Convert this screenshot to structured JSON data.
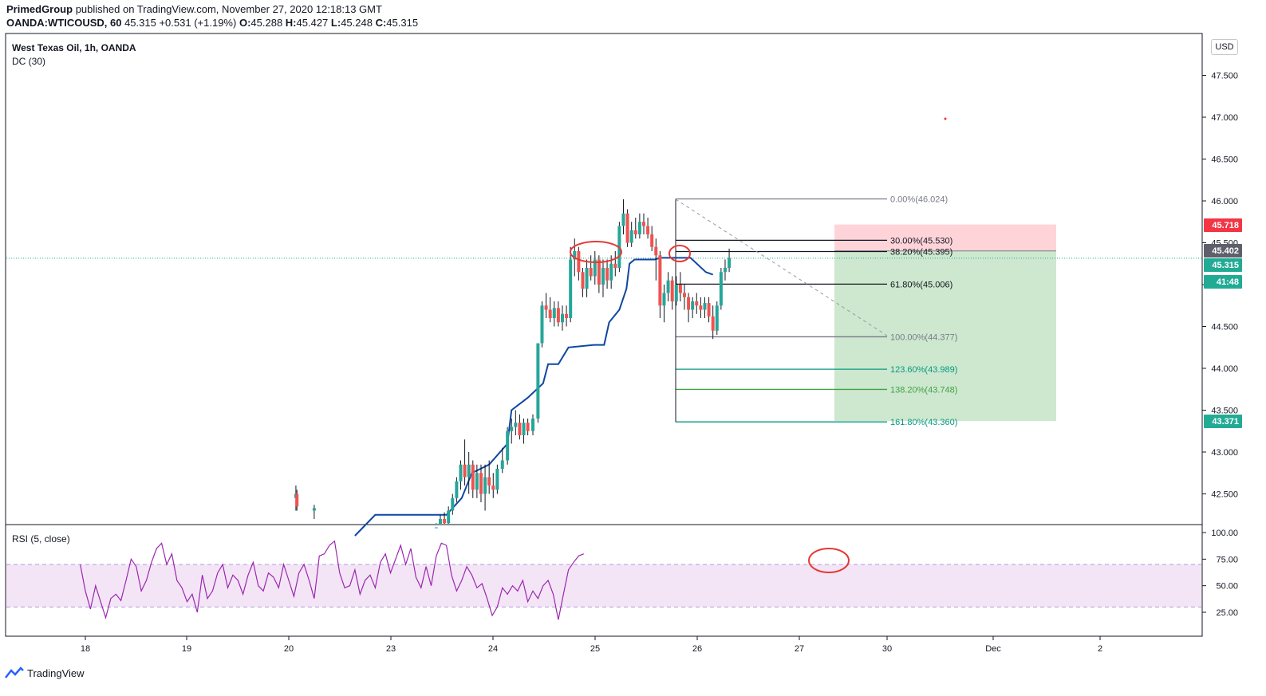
{
  "header": {
    "publisher": "PrimedGroup",
    "published_text": "published on TradingView.com, November 27, 2020 12:18:13 GMT",
    "symbol": "OANDA:WTICOUSD, 60",
    "last": "45.315",
    "change": "+0.531 (+1.19%)",
    "o_label": "O:",
    "o_val": "45.288",
    "h_label": "H:",
    "h_val": "45.427",
    "l_label": "L:",
    "l_val": "45.248",
    "c_label": "C:",
    "c_val": "45.315"
  },
  "legend": {
    "title": "West Texas Oil, 1h, OANDA",
    "indicator": "DC (30)",
    "rsi": "RSI (5, close)",
    "currency": "USD"
  },
  "footer": {
    "brand": "TradingView"
  },
  "colors": {
    "up": "#26a69a",
    "down": "#ef5350",
    "donchian": "#0d47a1",
    "rsi": "#9c27b0",
    "rsi_band": "#f3e5f5",
    "target_zone": "#c8e6c9",
    "stop_zone": "#ffcdd2",
    "price_badge_red": "#f23645",
    "price_badge_green": "#22ab94",
    "price_badge_gray": "#5d606b"
  },
  "chart_data": {
    "type": "candlestick",
    "price_axis": {
      "ticks": [
        42.5,
        43.0,
        43.5,
        44.0,
        44.5,
        45.0,
        45.5,
        46.0,
        46.5,
        47.0,
        47.5
      ],
      "labels": [
        "42.500",
        "43.000",
        "43.500",
        "44.000",
        "44.500",
        "45.000",
        "45.500",
        "46.000",
        "46.500",
        "47.000",
        "47.500"
      ]
    },
    "time_axis": {
      "labels": [
        "18",
        "19",
        "20",
        "23",
        "24",
        "25",
        "26",
        "27",
        "30",
        "Dec",
        "2"
      ]
    },
    "rsi_axis": {
      "ticks": [
        25,
        50,
        75,
        100
      ],
      "labels": [
        "25.00",
        "50.00",
        "75.00",
        "100.00"
      ],
      "band": [
        30,
        70
      ]
    },
    "price_badges": [
      {
        "text": "45.718",
        "value": 45.718,
        "kind": "red"
      },
      {
        "text": "45.402",
        "value": 45.402,
        "kind": "gray"
      },
      {
        "text": "45.315",
        "value": 45.315,
        "kind": "green"
      },
      {
        "text": "41:48",
        "value": 45.14,
        "kind": "green"
      },
      {
        "text": "43.371",
        "value": 43.371,
        "kind": "green"
      }
    ],
    "fib_levels": [
      {
        "label": "0.00%(46.024)",
        "value": 46.024,
        "color": "#787b86"
      },
      {
        "label": "30.00%(45.530)",
        "value": 45.53,
        "color": "#131722"
      },
      {
        "label": "38.20%(45.395)",
        "value": 45.395,
        "color": "#131722"
      },
      {
        "label": "61.80%(45.006)",
        "value": 45.006,
        "color": "#131722"
      },
      {
        "label": "100.00%(44.377)",
        "value": 44.377,
        "color": "#787b86"
      },
      {
        "label": "123.60%(43.989)",
        "value": 43.989,
        "color": "#089981"
      },
      {
        "label": "138.20%(43.748)",
        "value": 43.748,
        "color": "#43a047"
      },
      {
        "label": "161.80%(43.360)",
        "value": 43.36,
        "color": "#089981"
      }
    ],
    "position": {
      "entry": 45.402,
      "stop": 45.718,
      "target": 43.371
    },
    "current_price": 45.315,
    "donchian_mid": [
      [
        0.1,
        42.0
      ],
      [
        0.3,
        42.25
      ],
      [
        1.0,
        42.25
      ],
      [
        1.15,
        42.45
      ],
      [
        1.25,
        42.75
      ],
      [
        1.42,
        42.85
      ],
      [
        1.6,
        43.1
      ],
      [
        1.64,
        43.5
      ],
      [
        1.8,
        43.65
      ],
      [
        1.95,
        43.82
      ],
      [
        2.0,
        44.05
      ],
      [
        2.1,
        44.05
      ],
      [
        2.2,
        44.25
      ],
      [
        2.45,
        44.28
      ],
      [
        2.55,
        44.28
      ],
      [
        2.6,
        44.55
      ],
      [
        2.7,
        44.7
      ],
      [
        2.77,
        44.95
      ],
      [
        2.8,
        45.25
      ],
      [
        2.85,
        45.3
      ],
      [
        3.05,
        45.3
      ],
      [
        3.1,
        45.32
      ],
      [
        3.4,
        45.32
      ],
      [
        3.55,
        45.15
      ],
      [
        3.62,
        45.12
      ]
    ],
    "candles": [
      [
        -0.48,
        42.45,
        42.6,
        42.3,
        42.5
      ],
      [
        -0.47,
        42.5,
        42.55,
        42.3,
        42.35
      ],
      [
        -0.3,
        42.3,
        42.37,
        42.2,
        42.33
      ],
      [
        0.9,
        42.05,
        42.15,
        41.95,
        42.1
      ],
      [
        0.94,
        42.1,
        42.25,
        42.05,
        42.2
      ],
      [
        0.98,
        42.2,
        42.28,
        42.1,
        42.15
      ],
      [
        1.02,
        42.15,
        42.35,
        42.1,
        42.3
      ],
      [
        1.06,
        42.3,
        42.5,
        42.25,
        42.45
      ],
      [
        1.1,
        42.45,
        42.7,
        42.4,
        42.65
      ],
      [
        1.14,
        42.65,
        42.9,
        42.55,
        42.85
      ],
      [
        1.18,
        42.85,
        43.15,
        42.6,
        42.7
      ],
      [
        1.22,
        42.7,
        43.0,
        42.5,
        42.85
      ],
      [
        1.26,
        42.85,
        42.9,
        42.45,
        42.55
      ],
      [
        1.3,
        42.55,
        42.85,
        42.45,
        42.75
      ],
      [
        1.34,
        42.75,
        42.85,
        42.4,
        42.5
      ],
      [
        1.38,
        42.5,
        42.85,
        42.3,
        42.7
      ],
      [
        1.42,
        42.7,
        42.9,
        42.5,
        42.6
      ],
      [
        1.46,
        42.6,
        42.75,
        42.45,
        42.55
      ],
      [
        1.5,
        42.55,
        42.85,
        42.5,
        42.8
      ],
      [
        1.55,
        42.8,
        43.05,
        42.75,
        42.9
      ],
      [
        1.6,
        42.9,
        43.3,
        42.85,
        43.25
      ],
      [
        1.64,
        43.25,
        43.4,
        43.1,
        43.3
      ],
      [
        1.68,
        43.3,
        43.5,
        43.2,
        43.35
      ],
      [
        1.72,
        43.35,
        43.45,
        43.15,
        43.2
      ],
      [
        1.76,
        43.2,
        43.4,
        43.1,
        43.35
      ],
      [
        1.8,
        43.35,
        43.4,
        43.2,
        43.25
      ],
      [
        1.85,
        43.25,
        43.45,
        43.2,
        43.4
      ],
      [
        1.9,
        43.4,
        44.3,
        43.35,
        44.3
      ],
      [
        1.94,
        44.3,
        44.8,
        44.25,
        44.75
      ],
      [
        1.98,
        44.75,
        44.9,
        44.6,
        44.7
      ],
      [
        2.02,
        44.7,
        44.85,
        44.55,
        44.6
      ],
      [
        2.06,
        44.6,
        44.8,
        44.5,
        44.72
      ],
      [
        2.1,
        44.72,
        44.8,
        44.5,
        44.55
      ],
      [
        2.14,
        44.55,
        44.75,
        44.45,
        44.65
      ],
      [
        2.18,
        44.65,
        44.75,
        44.5,
        44.6
      ],
      [
        2.22,
        44.6,
        45.45,
        44.55,
        45.3
      ],
      [
        2.26,
        45.3,
        45.55,
        45.1,
        45.4
      ],
      [
        2.3,
        45.4,
        45.45,
        45.05,
        45.15
      ],
      [
        2.34,
        45.15,
        45.2,
        44.85,
        44.95
      ],
      [
        2.38,
        44.95,
        45.3,
        44.85,
        45.2
      ],
      [
        2.42,
        45.2,
        45.35,
        45.05,
        45.1
      ],
      [
        2.46,
        45.1,
        45.4,
        45.0,
        45.3
      ],
      [
        2.5,
        45.3,
        45.35,
        44.9,
        45.0
      ],
      [
        2.54,
        45.0,
        45.3,
        44.85,
        45.2
      ],
      [
        2.58,
        45.2,
        45.3,
        44.95,
        45.05
      ],
      [
        2.62,
        45.05,
        45.35,
        44.95,
        45.25
      ],
      [
        2.66,
        45.25,
        45.4,
        45.1,
        45.2
      ],
      [
        2.7,
        45.2,
        45.75,
        45.15,
        45.7
      ],
      [
        2.74,
        45.7,
        46.02,
        45.6,
        45.85
      ],
      [
        2.78,
        45.85,
        45.9,
        45.45,
        45.5
      ],
      [
        2.82,
        45.5,
        45.75,
        45.45,
        45.65
      ],
      [
        2.86,
        45.65,
        45.8,
        45.55,
        45.6
      ],
      [
        2.9,
        45.6,
        45.85,
        45.55,
        45.75
      ],
      [
        2.94,
        45.75,
        45.85,
        45.6,
        45.7
      ],
      [
        2.98,
        45.7,
        45.8,
        45.55,
        45.6
      ],
      [
        3.02,
        45.6,
        45.7,
        45.4,
        45.45
      ],
      [
        3.06,
        45.45,
        45.55,
        45.05,
        45.35
      ],
      [
        3.1,
        45.35,
        45.4,
        44.6,
        44.75
      ],
      [
        3.14,
        44.75,
        45.0,
        44.55,
        44.9
      ],
      [
        3.18,
        44.9,
        45.15,
        44.8,
        45.05
      ],
      [
        3.22,
        45.05,
        45.1,
        44.7,
        44.8
      ],
      [
        3.26,
        44.8,
        45.1,
        44.75,
        45.0
      ],
      [
        3.3,
        45.0,
        45.15,
        44.8,
        44.9
      ],
      [
        3.34,
        44.9,
        45.0,
        44.7,
        44.85
      ],
      [
        3.38,
        44.85,
        44.9,
        44.55,
        44.7
      ],
      [
        3.42,
        44.7,
        44.85,
        44.6,
        44.8
      ],
      [
        3.46,
        44.8,
        44.9,
        44.65,
        44.75
      ],
      [
        3.5,
        44.75,
        44.85,
        44.6,
        44.7
      ],
      [
        3.54,
        44.7,
        44.85,
        44.6,
        44.78
      ],
      [
        3.58,
        44.78,
        44.85,
        44.55,
        44.62
      ],
      [
        3.62,
        44.62,
        44.75,
        44.35,
        44.45
      ],
      [
        3.66,
        44.45,
        44.8,
        44.4,
        44.75
      ],
      [
        3.7,
        44.75,
        45.2,
        44.7,
        45.15
      ],
      [
        3.74,
        45.15,
        45.3,
        45.05,
        45.2
      ],
      [
        3.78,
        45.2,
        45.43,
        45.15,
        45.32
      ]
    ],
    "rsi": [
      [
        -0.75,
        70
      ],
      [
        -0.7,
        45
      ],
      [
        -0.65,
        28
      ],
      [
        -0.6,
        50
      ],
      [
        -0.55,
        35
      ],
      [
        -0.5,
        20
      ],
      [
        -0.45,
        38
      ],
      [
        -0.4,
        42
      ],
      [
        -0.35,
        36
      ],
      [
        -0.3,
        55
      ],
      [
        -0.25,
        75
      ],
      [
        -0.2,
        68
      ],
      [
        -0.15,
        45
      ],
      [
        -0.1,
        55
      ],
      [
        -0.05,
        72
      ],
      [
        0.0,
        85
      ],
      [
        0.05,
        90
      ],
      [
        0.1,
        70
      ],
      [
        0.15,
        80
      ],
      [
        0.2,
        55
      ],
      [
        0.25,
        48
      ],
      [
        0.3,
        35
      ],
      [
        0.35,
        42
      ],
      [
        0.4,
        25
      ],
      [
        0.45,
        60
      ],
      [
        0.5,
        38
      ],
      [
        0.55,
        45
      ],
      [
        0.6,
        62
      ],
      [
        0.65,
        70
      ],
      [
        0.7,
        48
      ],
      [
        0.75,
        60
      ],
      [
        0.8,
        55
      ],
      [
        0.85,
        42
      ],
      [
        0.9,
        60
      ],
      [
        0.95,
        72
      ],
      [
        1.0,
        50
      ],
      [
        1.05,
        45
      ],
      [
        1.1,
        62
      ],
      [
        1.15,
        58
      ],
      [
        1.2,
        48
      ],
      [
        1.25,
        70
      ],
      [
        1.3,
        55
      ],
      [
        1.35,
        40
      ],
      [
        1.4,
        62
      ],
      [
        1.45,
        70
      ],
      [
        1.5,
        55
      ],
      [
        1.55,
        38
      ],
      [
        1.6,
        78
      ],
      [
        1.65,
        80
      ],
      [
        1.7,
        88
      ],
      [
        1.75,
        92
      ],
      [
        1.8,
        62
      ],
      [
        1.85,
        48
      ],
      [
        1.9,
        50
      ],
      [
        1.95,
        65
      ],
      [
        2.0,
        42
      ],
      [
        2.05,
        55
      ],
      [
        2.1,
        60
      ],
      [
        2.15,
        48
      ],
      [
        2.2,
        72
      ],
      [
        2.25,
        80
      ],
      [
        2.3,
        62
      ],
      [
        2.35,
        75
      ],
      [
        2.4,
        88
      ],
      [
        2.45,
        70
      ],
      [
        2.5,
        85
      ],
      [
        2.55,
        58
      ],
      [
        2.6,
        48
      ],
      [
        2.65,
        68
      ],
      [
        2.7,
        50
      ],
      [
        2.75,
        78
      ],
      [
        2.8,
        90
      ],
      [
        2.85,
        88
      ],
      [
        2.9,
        60
      ],
      [
        2.95,
        45
      ],
      [
        3.0,
        55
      ],
      [
        3.05,
        68
      ],
      [
        3.1,
        60
      ],
      [
        3.15,
        48
      ],
      [
        3.2,
        52
      ],
      [
        3.25,
        38
      ],
      [
        3.3,
        22
      ],
      [
        3.35,
        30
      ],
      [
        3.4,
        48
      ],
      [
        3.45,
        42
      ],
      [
        3.5,
        50
      ],
      [
        3.55,
        45
      ],
      [
        3.6,
        55
      ],
      [
        3.65,
        35
      ],
      [
        3.7,
        45
      ],
      [
        3.75,
        38
      ],
      [
        3.8,
        50
      ],
      [
        3.85,
        55
      ],
      [
        3.9,
        42
      ],
      [
        3.95,
        18
      ],
      [
        4.0,
        42
      ],
      [
        4.05,
        65
      ],
      [
        4.1,
        72
      ],
      [
        4.15,
        78
      ],
      [
        4.2,
        80
      ]
    ]
  }
}
